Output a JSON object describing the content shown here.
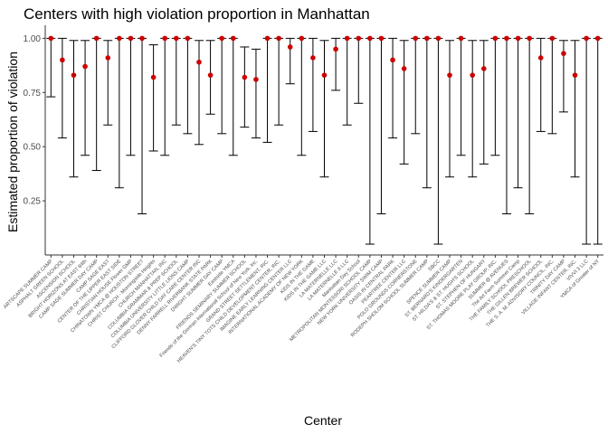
{
  "chart_data": {
    "type": "errorbar",
    "title": "Centers with high violation proportion in Manhattan",
    "xlabel": "Center",
    "ylabel": "Estimated proportion of violation",
    "ylim": [
      0,
      1.06
    ],
    "yticks": [
      0.25,
      0.5,
      0.75,
      1.0
    ],
    "ytick_labels": [
      "0.25",
      "0.50",
      "0.75",
      "1.00"
    ],
    "colors": {
      "point": "#cc0000",
      "bar": "#000000"
    },
    "categories": [
      "ARTSCAPE SUMMER CAMP",
      "ASPHALT GREEN SCHOOL",
      "ASCENSION SCHOOL",
      "BRIGHT HORIZONS AT EAST 84th",
      "CAMP SAGE SUMMER DAY CAMP",
      "CAMP SAGE EAST",
      "CENTER OF THE UPPER EAST SIDE",
      "CHRISTIAN HOUSE Flower GMP",
      "CHINATOWN YMCA @ HOUSTON STREET",
      "CHRIST CHURCH - Morningside Heights",
      "CHURCH MANHATTAN, INC",
      "COLUMBIA GRAMMAR & PREP SCHOOL",
      "COLUMBIA UNIVERSITY LITTLE LIONS CAMP",
      "CLIFFORD GLOVER CHILD DAY CARE CENTER INC",
      "DENNY FARRELL RIVERBANK STATE PARK",
      "DWIGHT SUMMER DAY CAMP",
      "Eastside YMCA",
      "FRIENDS SEMINARY SUMMER SCHOOL",
      "Friends of the German International School of New York, Inc.",
      "GRAND STREET SETTLEMENT, INC.",
      "HEAVEN'S TINY TOTS CHILD DEVELOPMENT CENTER, INC.",
      "IMAGINE EARLY LEARNING CENTER LLC",
      "INTERNATIONAL ACADEMY OF NEW YORK",
      "KIDS IN THE GAME",
      "KIDS IN THE GAME LLC",
      "LA MATERNELLE LLC",
      "LA MATERNELLE II LLC",
      "Manhattan Day School",
      "METROPOLITAN MONTESSORI SCHOOL CAMP",
      "NEW YORK UNIVERSITY SWIM CAMP",
      "OASIS IN CENTRAL PARK",
      "PEARTREE CENTER LLC",
      "POLO GROUNDS CORNERSTONE",
      "RODEPH SHOLOM SCHOOL SUMMER CAMP",
      "SBCC",
      "SPENCE SUMMER CAMP",
      "ST. BERNARD'S KINDERGARTEN",
      "ST. HILDA'S & ST. HUGH'S SCHOOL",
      "ST. STEPHEN OF HUNGARY",
      "ST. THOMAS MOORE PLAY GROUP, INC.",
      "SUMMER @ AVENUES",
      "The Art Farm Summer Camp",
      "THE FAMILY SCHOOL PRESCHOOL",
      "THE GILLEN BREWER SCHOOL",
      "THE S. A. M. ADVISORY COUNCIL, INC.",
      "TRINITY DAY CAMP",
      "VILLAGE INFANT CENTER, INC.",
      "VIVVI 3 LLC",
      "YMCA of Greater of NY"
    ],
    "estimate": [
      1.0,
      0.9,
      0.83,
      0.87,
      1.0,
      0.91,
      1.0,
      1.0,
      1.0,
      0.82,
      1.0,
      1.0,
      1.0,
      0.89,
      0.83,
      1.0,
      1.0,
      0.82,
      0.81,
      1.0,
      1.0,
      0.96,
      1.0,
      0.91,
      0.83,
      0.95,
      1.0,
      1.0,
      1.0,
      1.0,
      0.9,
      0.86,
      1.0,
      1.0,
      1.0,
      0.83,
      1.0,
      0.83,
      0.86,
      1.0,
      1.0,
      1.0,
      1.0,
      0.91,
      1.0,
      0.93,
      0.83,
      1.0,
      1.0
    ],
    "lower": [
      0.73,
      0.54,
      0.36,
      0.46,
      0.39,
      0.6,
      0.31,
      0.46,
      0.19,
      0.48,
      0.46,
      0.6,
      0.56,
      0.51,
      0.65,
      0.56,
      0.46,
      0.59,
      0.54,
      0.52,
      0.6,
      0.79,
      0.46,
      0.57,
      0.36,
      0.76,
      0.6,
      0.7,
      0.05,
      0.19,
      0.54,
      0.42,
      0.56,
      0.31,
      0.05,
      0.36,
      0.46,
      0.36,
      0.42,
      0.46,
      0.19,
      0.31,
      0.19,
      0.57,
      0.56,
      0.66,
      0.36,
      0.05,
      0.05
    ],
    "upper": [
      1.0,
      1.0,
      0.99,
      0.99,
      1.0,
      0.99,
      1.0,
      1.0,
      1.0,
      0.97,
      1.0,
      1.0,
      1.0,
      0.99,
      0.99,
      1.0,
      1.0,
      0.96,
      0.95,
      1.0,
      1.0,
      1.0,
      1.0,
      1.0,
      0.99,
      1.0,
      1.0,
      1.0,
      1.0,
      1.0,
      1.0,
      0.99,
      1.0,
      1.0,
      1.0,
      0.99,
      1.0,
      0.99,
      0.99,
      1.0,
      1.0,
      1.0,
      1.0,
      1.0,
      1.0,
      0.99,
      0.99,
      1.0,
      1.0
    ]
  }
}
